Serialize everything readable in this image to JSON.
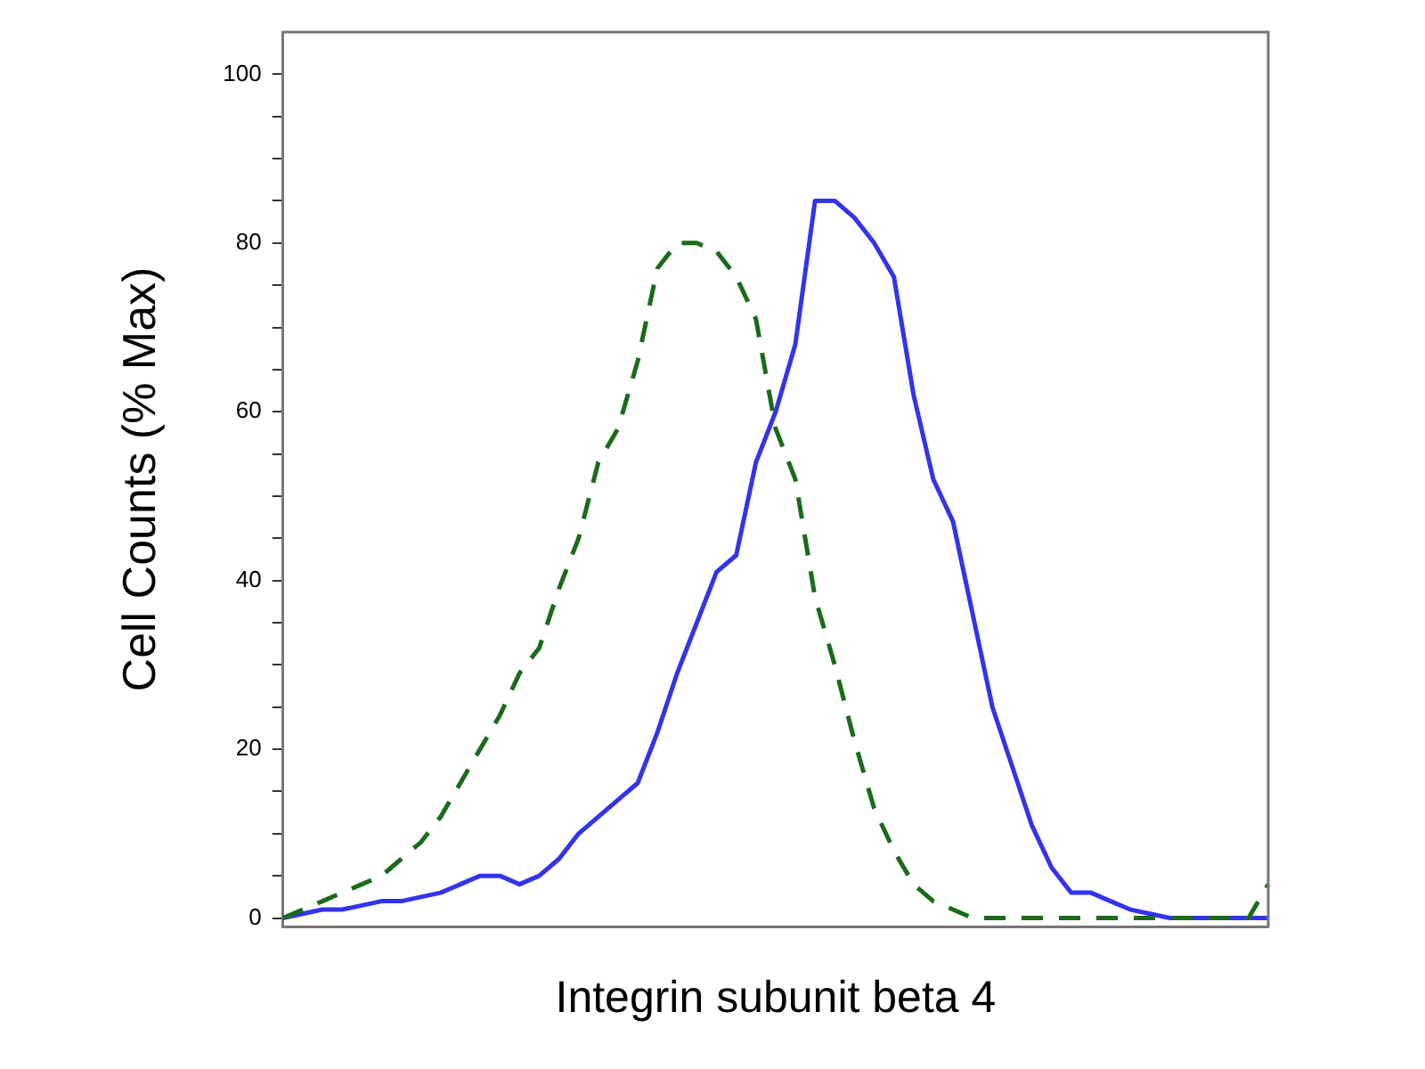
{
  "chart_data": {
    "type": "line",
    "xlabel": "Integrin subunit beta 4",
    "ylabel": "Cell Counts (% Max)",
    "categories": [
      null,
      null,
      null,
      null,
      null,
      null,
      null,
      null,
      null,
      null,
      null,
      null,
      null,
      null,
      null,
      null,
      null,
      null,
      null,
      null,
      null,
      null,
      null,
      null,
      null,
      null,
      null,
      null,
      null,
      null,
      null,
      null,
      null,
      null,
      null,
      null,
      null,
      null,
      null,
      null,
      null,
      null,
      null,
      null,
      null,
      null,
      null,
      null,
      null,
      null,
      null
    ],
    "series": [
      {
        "color": "#1a6b1a",
        "line_style": "dashed",
        "values": [
          0,
          1,
          2,
          3,
          4,
          5,
          7,
          9,
          12,
          16,
          20,
          24,
          29,
          32,
          39,
          45,
          54,
          58,
          66,
          77,
          80,
          80,
          79,
          76,
          71,
          58,
          52,
          38,
          30,
          21,
          13,
          8,
          4,
          2,
          1,
          0,
          0,
          0,
          0,
          0,
          0,
          0,
          0,
          0,
          0,
          0,
          0,
          0,
          0,
          0,
          4
        ]
      },
      {
        "color": "#3333ee",
        "line_style": "solid",
        "values": [
          0,
          0.5,
          1,
          1,
          1.5,
          2,
          2,
          2.5,
          3,
          4,
          5,
          5,
          4,
          5,
          7,
          10,
          12,
          14,
          16,
          22,
          29,
          35,
          41,
          43,
          54,
          60,
          68,
          85,
          85,
          83,
          80,
          76,
          62,
          52,
          47,
          36,
          25,
          18,
          11,
          6,
          3,
          3,
          2,
          1,
          0.5,
          0,
          0,
          0,
          0,
          0,
          0
        ]
      }
    ],
    "ylim": [
      -1,
      105
    ],
    "yticks": [
      0,
      {
        "value": 5,
        "label": null
      },
      {
        "value": 10,
        "label": null
      },
      {
        "value": 15,
        "label": null
      },
      20,
      {
        "value": 25,
        "label": null
      },
      {
        "value": 30,
        "label": null
      },
      {
        "value": 35,
        "label": null
      },
      40,
      {
        "value": 45,
        "label": null
      },
      {
        "value": 50,
        "label": null
      },
      {
        "value": 55,
        "label": null
      },
      60,
      {
        "value": 65,
        "label": null
      },
      {
        "value": 70,
        "label": null
      },
      {
        "value": 75,
        "label": null
      },
      80,
      {
        "value": 85,
        "label": null
      },
      {
        "value": 90,
        "label": null
      },
      {
        "value": 95,
        "label": null
      },
      100
    ],
    "tick_labels": "y",
    "grid": false,
    "legend": false,
    "marker": "none"
  }
}
